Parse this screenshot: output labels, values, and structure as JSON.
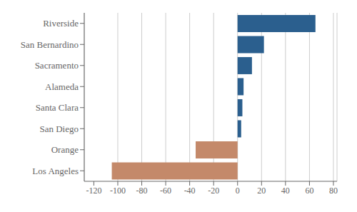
{
  "chart_data": {
    "type": "bar",
    "orientation": "horizontal",
    "categories": [
      "Riverside",
      "San Bernardino",
      "Sacramento",
      "Alameda",
      "Santa Clara",
      "San Diego",
      "Orange",
      "Los Angeles"
    ],
    "values": [
      65,
      22,
      12,
      5,
      4,
      3,
      -35,
      -105
    ],
    "colors": [
      "#2b5f8e",
      "#2b5f8e",
      "#2b5f8e",
      "#2b5f8e",
      "#2b5f8e",
      "#2b5f8e",
      "#c4896a",
      "#c4896a"
    ],
    "xlim": [
      -128,
      83
    ],
    "xticks": [
      -120,
      -100,
      -80,
      -60,
      -40,
      -20,
      0,
      20,
      40,
      60,
      80
    ],
    "grid": true
  }
}
